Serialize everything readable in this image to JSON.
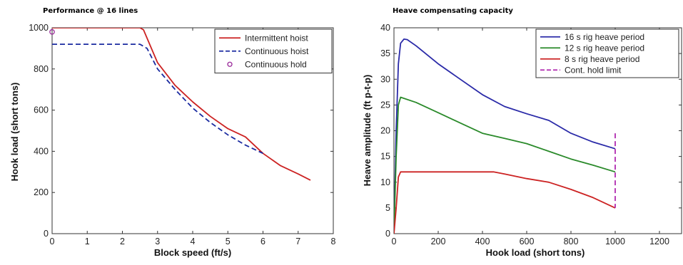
{
  "chart_data": [
    {
      "type": "line",
      "title": "Performance @ 16 lines",
      "xlabel": "Block speed (ft/s)",
      "ylabel": "Hook load (short tons)",
      "xlim": [
        0,
        8
      ],
      "ylim": [
        0,
        1000
      ],
      "xticks": [
        0,
        1,
        2,
        3,
        4,
        5,
        6,
        7,
        8
      ],
      "yticks": [
        0,
        200,
        400,
        600,
        800,
        1000
      ],
      "grid": false,
      "legend_position": "top-right",
      "series": [
        {
          "name": "Intermittent hoist",
          "color": "#cc2222",
          "style": "solid",
          "x": [
            0,
            0.5,
            1,
            1.5,
            2,
            2.5,
            2.6,
            2.8,
            3.0,
            3.5,
            4.0,
            4.5,
            5.0,
            5.5,
            6.0,
            6.5,
            7.0,
            7.35
          ],
          "y": [
            1000,
            1000,
            1000,
            1000,
            1000,
            1000,
            990,
            910,
            830,
            720,
            640,
            570,
            510,
            470,
            390,
            330,
            290,
            260
          ]
        },
        {
          "name": "Continuous hoist",
          "color": "#1a2aa0",
          "style": "dashed",
          "x": [
            0,
            0.5,
            1,
            1.5,
            2,
            2.5,
            2.7,
            3.0,
            3.5,
            4.0,
            4.5,
            5.0,
            5.5,
            6.0
          ],
          "y": [
            920,
            920,
            920,
            920,
            920,
            920,
            900,
            800,
            700,
            610,
            540,
            480,
            430,
            390
          ]
        },
        {
          "name": "Continuous hold",
          "color": "#9a2a9a",
          "style": "marker",
          "x": [
            0
          ],
          "y": [
            980
          ]
        }
      ]
    },
    {
      "type": "line",
      "title": "Heave compensating capacity",
      "xlabel": "Hook load (short tons)",
      "ylabel": "Heave amplitude (ft p-t-p)",
      "xlim": [
        0,
        1300
      ],
      "ylim": [
        0,
        40
      ],
      "xticks": [
        0,
        200,
        400,
        600,
        800,
        1000,
        1200
      ],
      "yticks": [
        0,
        5,
        10,
        15,
        20,
        25,
        30,
        35,
        40
      ],
      "grid": false,
      "legend_position": "top-right",
      "series": [
        {
          "name": "16 s  rig heave period",
          "color": "#2a2aa8",
          "style": "solid",
          "x": [
            0,
            10,
            20,
            30,
            45,
            60,
            100,
            200,
            300,
            400,
            500,
            600,
            700,
            800,
            900,
            1000
          ],
          "y": [
            0,
            20,
            33,
            37,
            37.8,
            37.7,
            36.5,
            33,
            30,
            27,
            24.7,
            23.3,
            22,
            19.5,
            17.8,
            16.5
          ]
        },
        {
          "name": "12 s  rig heave period",
          "color": "#2a8a2a",
          "style": "solid",
          "x": [
            0,
            10,
            20,
            30,
            100,
            200,
            300,
            400,
            500,
            600,
            700,
            800,
            900,
            1000
          ],
          "y": [
            0,
            15,
            25,
            26.5,
            25.5,
            23.5,
            21.5,
            19.5,
            18.5,
            17.5,
            16,
            14.5,
            13.3,
            12
          ]
        },
        {
          "name": "8 s  rig heave period",
          "color": "#cc2222",
          "style": "solid",
          "x": [
            0,
            10,
            20,
            30,
            100,
            200,
            300,
            400,
            450,
            500,
            600,
            700,
            800,
            900,
            1000
          ],
          "y": [
            0,
            5,
            11,
            12,
            12,
            12,
            12,
            12,
            12,
            11.6,
            10.7,
            10,
            8.6,
            7,
            5
          ]
        },
        {
          "name": "Cont. hold limit",
          "color": "#b02ab0",
          "style": "dashed",
          "x": [
            1000,
            1000
          ],
          "y": [
            19.5,
            5
          ]
        }
      ]
    }
  ]
}
